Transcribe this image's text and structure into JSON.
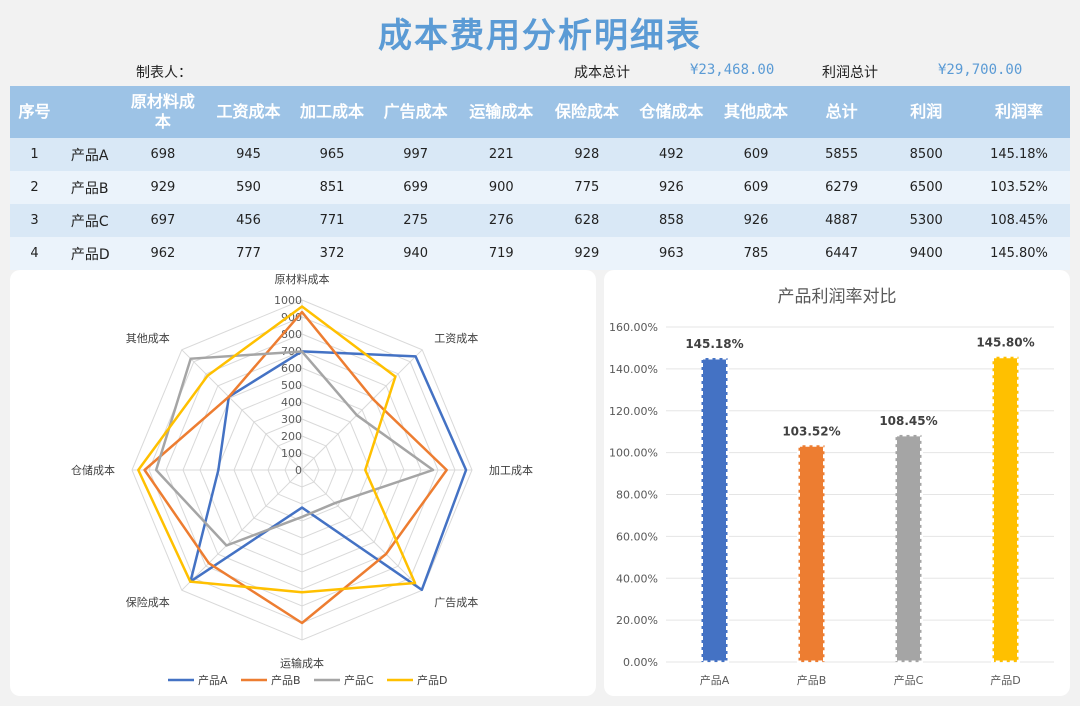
{
  "title": "成本费用分析明细表",
  "meta": {
    "maker_label": "制表人：",
    "cost_total_label": "成本总计",
    "cost_total_value": "¥23,468.00",
    "profit_total_label": "利润总计",
    "profit_total_value": "¥29,700.00"
  },
  "table": {
    "headers": [
      "序号",
      "",
      "原材料成本",
      "工资成本",
      "加工成本",
      "广告成本",
      "运输成本",
      "保险成本",
      "仓储成本",
      "其他成本",
      "总计",
      "利润",
      "利润率"
    ],
    "rows": [
      [
        "1",
        "产品A",
        "698",
        "945",
        "965",
        "997",
        "221",
        "928",
        "492",
        "609",
        "5855",
        "8500",
        "145.18%"
      ],
      [
        "2",
        "产品B",
        "929",
        "590",
        "851",
        "699",
        "900",
        "775",
        "926",
        "609",
        "6279",
        "6500",
        "103.52%"
      ],
      [
        "3",
        "产品C",
        "697",
        "456",
        "771",
        "275",
        "276",
        "628",
        "858",
        "926",
        "4887",
        "5300",
        "108.45%"
      ],
      [
        "4",
        "产品D",
        "962",
        "777",
        "372",
        "940",
        "719",
        "929",
        "963",
        "785",
        "6447",
        "9400",
        "145.80%"
      ]
    ]
  },
  "chart_data": [
    {
      "type": "radar",
      "axes": [
        "原材料成本",
        "工资成本",
        "加工成本",
        "广告成本",
        "运输成本",
        "保险成本",
        "仓储成本",
        "其他成本"
      ],
      "ticks": [
        "0",
        "100",
        "200",
        "300",
        "400",
        "500",
        "600",
        "700",
        "800",
        "900",
        "1000"
      ],
      "range": [
        0,
        1000
      ],
      "legend_position": "bottom",
      "series": [
        {
          "name": "产品A",
          "color": "#4472c4",
          "values": [
            698,
            945,
            965,
            997,
            221,
            928,
            492,
            609
          ]
        },
        {
          "name": "产品B",
          "color": "#ed7d31",
          "values": [
            929,
            590,
            851,
            699,
            900,
            775,
            926,
            609
          ]
        },
        {
          "name": "产品C",
          "color": "#a5a5a5",
          "values": [
            697,
            456,
            771,
            275,
            276,
            628,
            858,
            926
          ]
        },
        {
          "name": "产品D",
          "color": "#ffc000",
          "values": [
            962,
            777,
            372,
            940,
            719,
            929,
            963,
            785
          ]
        }
      ]
    },
    {
      "type": "bar",
      "title": "产品利润率对比",
      "categories": [
        "产品A",
        "产品B",
        "产品C",
        "产品D"
      ],
      "values": [
        145.18,
        103.52,
        108.45,
        145.8
      ],
      "labels": [
        "145.18%",
        "103.52%",
        "108.45%",
        "145.80%"
      ],
      "colors": [
        "#4472c4",
        "#ed7d31",
        "#a5a5a5",
        "#ffc000"
      ],
      "ylim": [
        0,
        160
      ],
      "yticks": [
        "0.00%",
        "20.00%",
        "40.00%",
        "60.00%",
        "80.00%",
        "100.00%",
        "120.00%",
        "140.00%",
        "160.00%"
      ],
      "grid": true
    }
  ]
}
